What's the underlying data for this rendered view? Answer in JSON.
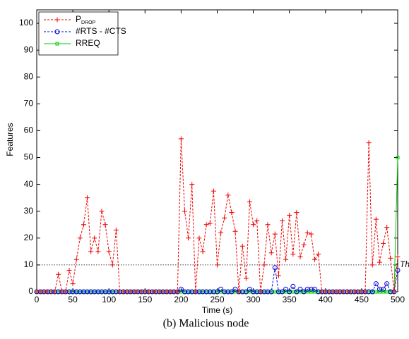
{
  "chart_data": {
    "type": "line",
    "caption": "(b) Malicious node",
    "x_label": "Time (s)",
    "y_label": "Features",
    "x": [
      0,
      5,
      10,
      15,
      20,
      25,
      30,
      35,
      40,
      45,
      50,
      55,
      60,
      65,
      70,
      75,
      80,
      85,
      90,
      95,
      100,
      105,
      110,
      115,
      120,
      125,
      130,
      135,
      140,
      145,
      150,
      155,
      160,
      165,
      170,
      175,
      180,
      185,
      190,
      195,
      200,
      205,
      210,
      215,
      220,
      225,
      230,
      235,
      240,
      245,
      250,
      255,
      260,
      265,
      270,
      275,
      280,
      285,
      290,
      295,
      300,
      305,
      310,
      315,
      320,
      325,
      330,
      335,
      340,
      345,
      350,
      355,
      360,
      365,
      370,
      375,
      380,
      385,
      390,
      395,
      400,
      405,
      410,
      415,
      420,
      425,
      430,
      435,
      440,
      445,
      450,
      455,
      460,
      465,
      470,
      475,
      480,
      485,
      490,
      495,
      500
    ],
    "series": [
      {
        "name": "RREQ",
        "color": "#00cc00",
        "marker": "square",
        "dash": "solid",
        "values": [
          0,
          0,
          0,
          0,
          0,
          0,
          0,
          0,
          0,
          0,
          0,
          0,
          0,
          0,
          0,
          0,
          0,
          0,
          0,
          0,
          0,
          0,
          0,
          0,
          0,
          0,
          0,
          0,
          0,
          0,
          0,
          0,
          0,
          0,
          0,
          0,
          0,
          0,
          0,
          0,
          0,
          0,
          0,
          0,
          0,
          0,
          0,
          0,
          0,
          0,
          0,
          0,
          0,
          0,
          0,
          0,
          0,
          0,
          0,
          0,
          0,
          0,
          0,
          0,
          0,
          0,
          0,
          0,
          0,
          0,
          0,
          0,
          0,
          0,
          0,
          0,
          0,
          0,
          0,
          0,
          0,
          0,
          0,
          0,
          0,
          0,
          0,
          0,
          0,
          0,
          0,
          0,
          0,
          0,
          0,
          0,
          0,
          0,
          0,
          0,
          50
        ]
      },
      {
        "name": "#RTS - #CTS",
        "color": "#0000dd",
        "marker": "circle",
        "dash": "dashed",
        "values": [
          0,
          0,
          0,
          0,
          0,
          0,
          0,
          0,
          0,
          0,
          0,
          0,
          0,
          0,
          0,
          0,
          0,
          0,
          0,
          0,
          0,
          0,
          0,
          0,
          0,
          0,
          0,
          0,
          0,
          0,
          0,
          0,
          0,
          0,
          0,
          0,
          0,
          0,
          0,
          0,
          1,
          0,
          0,
          0,
          0,
          0,
          0,
          0,
          0,
          0,
          0,
          1,
          0,
          0,
          0,
          1,
          0,
          0,
          0,
          1,
          0,
          0,
          0,
          0,
          0,
          0,
          9,
          0,
          0,
          1,
          0,
          2,
          0,
          1,
          0,
          1,
          1,
          1,
          0,
          0,
          0,
          0,
          0,
          0,
          0,
          0,
          0,
          0,
          0,
          0,
          0,
          0,
          0,
          0,
          3,
          1,
          1,
          3,
          0,
          0,
          8
        ]
      },
      {
        "name": "P",
        "name_subscript": "DROP",
        "color": "#ee0000",
        "marker": "plus",
        "dash": "dashed",
        "values": [
          0,
          0,
          0,
          0,
          0,
          0,
          6.5,
          0,
          0,
          8,
          3,
          12,
          20,
          25,
          35,
          15,
          20,
          15,
          30,
          25,
          15,
          10,
          23,
          0,
          0,
          0,
          0,
          0,
          0,
          0,
          0,
          0,
          0,
          0,
          0,
          0,
          0,
          0,
          0,
          0,
          57,
          30,
          20,
          40,
          0,
          20,
          15,
          25,
          25.5,
          37.5,
          10,
          22,
          27.5,
          36,
          29.5,
          22.5,
          0,
          17,
          5,
          33.5,
          25,
          26.5,
          0,
          10,
          25,
          14.5,
          21.5,
          6,
          26.5,
          12,
          28.5,
          14,
          29.5,
          13,
          17.5,
          22,
          21.5,
          12,
          14,
          0,
          0,
          0,
          0,
          0,
          0,
          0,
          0,
          0,
          0,
          0,
          0,
          0,
          55.5,
          10,
          27,
          11,
          18,
          24,
          12.5,
          0,
          13
        ]
      }
    ],
    "legend_order": [
      2,
      1,
      0
    ],
    "legend": "upper left",
    "threshold": 10,
    "threshold_label": "Threshold",
    "xlim": [
      0,
      500
    ],
    "xticks": [
      0,
      50,
      100,
      150,
      200,
      250,
      300,
      350,
      400,
      450,
      500
    ],
    "ylim": [
      0,
      105
    ],
    "yticks": [
      0,
      10,
      20,
      30,
      40,
      50,
      60,
      70,
      80,
      90,
      100
    ],
    "grid": false
  }
}
